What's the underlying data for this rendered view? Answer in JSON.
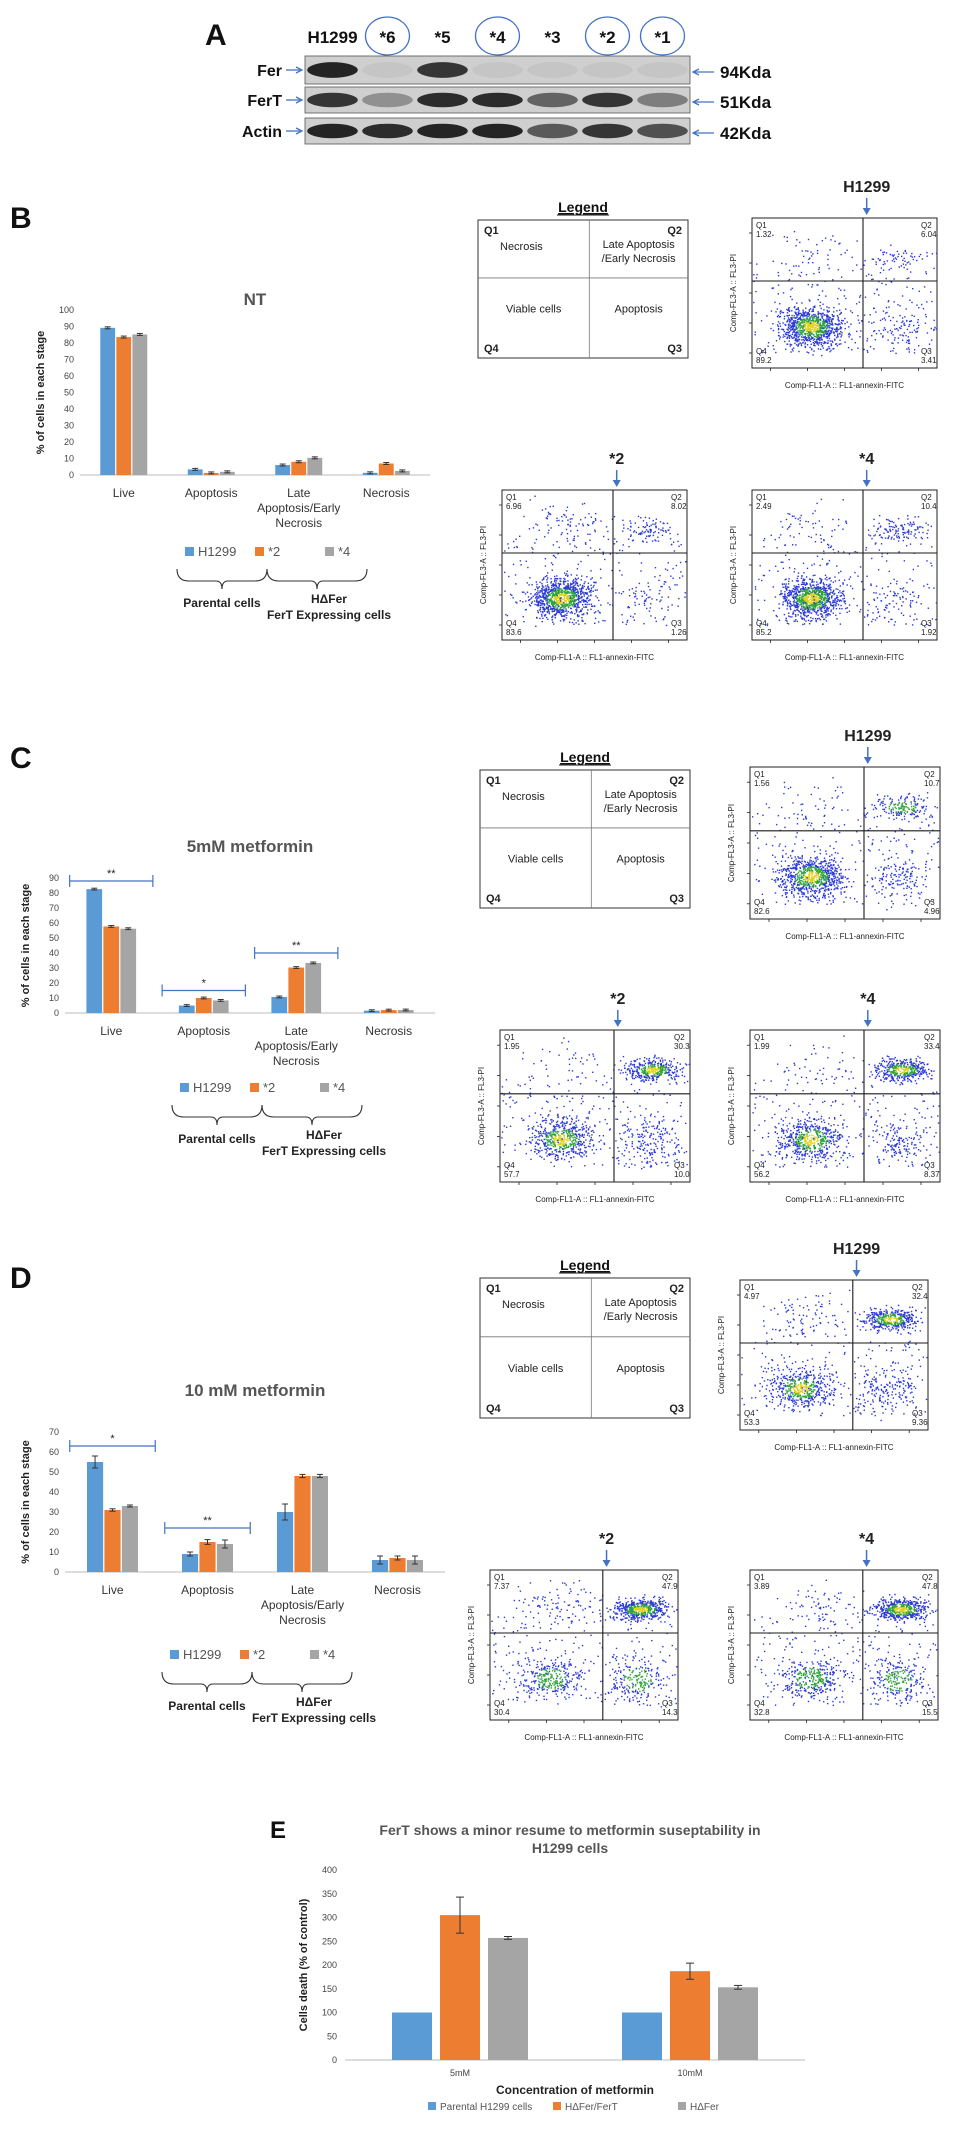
{
  "colors": {
    "h1299": "#5b9bd5",
    "s2": "#ed7d31",
    "s4": "#a5a5a5",
    "blot_bg": "#cfcfcf",
    "band": "#1a1a1a",
    "arrow": "#4472c4",
    "flow_grid": "#1a1a1a"
  },
  "panel_a": {
    "letter": "A",
    "lanes": [
      "H1299",
      "*6",
      "*5",
      "*4",
      "*3",
      "*2",
      "*1"
    ],
    "circled_lanes": [
      "*6",
      "*4",
      "*2",
      "*1"
    ],
    "rows": [
      {
        "label": "Fer",
        "size": "94Kda",
        "intensity": [
          0.95,
          0.05,
          0.85,
          0.05,
          0.05,
          0.05,
          0.05
        ]
      },
      {
        "label": "FerT",
        "size": "51Kda",
        "intensity": [
          0.85,
          0.35,
          0.9,
          0.9,
          0.6,
          0.85,
          0.45
        ]
      },
      {
        "label": "Actin",
        "size": "42Kda",
        "intensity": [
          0.95,
          0.9,
          0.95,
          0.95,
          0.65,
          0.85,
          0.7
        ]
      }
    ]
  },
  "bar_common": {
    "ylabel": "% of cells in each stage",
    "categories": [
      "Live",
      "Apoptosis",
      "Late Apoptosis/Early Necrosis",
      "Necrosis"
    ],
    "category_lines": [
      [
        "Live"
      ],
      [
        "Apoptosis"
      ],
      [
        "Late",
        "Apoptosis/Early",
        "Necrosis"
      ],
      [
        "Necrosis"
      ]
    ],
    "legend": [
      "H1299",
      "*2",
      "*4"
    ],
    "brace_left": "Parental cells",
    "brace_right_1": "HΔFer",
    "brace_right_2": "FerT Expressing cells"
  },
  "legend_box": {
    "title": "Legend",
    "q1": "Q1",
    "q2": "Q2",
    "q3": "Q3",
    "q4": "Q4",
    "necrosis": "Necrosis",
    "late_1": "Late Apoptosis",
    "late_2": "/Early Necrosis",
    "viable": "Viable cells",
    "apoptosis": "Apoptosis"
  },
  "flow_axes": {
    "x": "Comp-FL1-A :: FL1-annexin-FITC",
    "y": "Comp-FL3-A :: FL3-PI"
  },
  "panel_b": {
    "letter": "B",
    "chart_data": {
      "type": "bar",
      "title": "NT",
      "categories": [
        "Live",
        "Apoptosis",
        "Late Apoptosis/Early Necrosis",
        "Necrosis"
      ],
      "series": [
        {
          "name": "H1299",
          "values": [
            89.2,
            3.41,
            6.04,
            1.32
          ]
        },
        {
          "name": "*2",
          "values": [
            83.6,
            1.26,
            8.02,
            6.96
          ]
        },
        {
          "name": "*4",
          "values": [
            85.2,
            1.92,
            10.4,
            2.49
          ]
        }
      ],
      "ylim": [
        0,
        100
      ],
      "yticks": [
        0,
        10,
        20,
        30,
        40,
        50,
        60,
        70,
        80,
        90,
        100
      ],
      "ylabel": "% of cells in each stage",
      "sig": []
    },
    "flows": [
      {
        "title": "H1299",
        "q1": "1.32",
        "q2": "6.04",
        "q3": "3.41",
        "q4": "89.2",
        "seed": 11,
        "pop": [
          0.04,
          0.05,
          0.08,
          0.83
        ]
      },
      {
        "title": "*2",
        "q1": "6.96",
        "q2": "8.02",
        "q3": "1.26",
        "q4": "83.6",
        "seed": 23,
        "pop": [
          0.08,
          0.08,
          0.04,
          0.8
        ]
      },
      {
        "title": "*4",
        "q1": "2.49",
        "q2": "10.4",
        "q3": "1.92",
        "q4": "85.2",
        "seed": 37,
        "pop": [
          0.05,
          0.11,
          0.05,
          0.79
        ]
      }
    ]
  },
  "panel_c": {
    "letter": "C",
    "chart_data": {
      "type": "bar",
      "title": "5mM metformin",
      "categories": [
        "Live",
        "Apoptosis",
        "Late Apoptosis/Early Necrosis",
        "Necrosis"
      ],
      "series": [
        {
          "name": "H1299",
          "values": [
            82.6,
            4.96,
            10.7,
            1.56
          ]
        },
        {
          "name": "*2",
          "values": [
            57.7,
            10.0,
            30.3,
            1.95
          ]
        },
        {
          "name": "*4",
          "values": [
            56.2,
            8.37,
            33.4,
            1.99
          ]
        }
      ],
      "ylim": [
        0,
        90
      ],
      "yticks": [
        0,
        10,
        20,
        30,
        40,
        50,
        60,
        70,
        80,
        90
      ],
      "ylabel": "% of cells in each stage",
      "sig": [
        {
          "cat": 0,
          "label": "**",
          "y": 88
        },
        {
          "cat": 1,
          "label": "*",
          "y": 15
        },
        {
          "cat": 2,
          "label": "**",
          "y": 40
        }
      ]
    },
    "flows": [
      {
        "title": "H1299",
        "q1": "1.56",
        "q2": "10.7",
        "q3": "4.96",
        "q4": "82.6",
        "seed": 41,
        "pop": [
          0.04,
          0.16,
          0.12,
          0.68
        ]
      },
      {
        "title": "*2",
        "q1": "1.95",
        "q2": "30.3",
        "q3": "10.0",
        "q4": "57.7",
        "seed": 53,
        "pop": [
          0.04,
          0.34,
          0.15,
          0.47
        ]
      },
      {
        "title": "*4",
        "q1": "1.99",
        "q2": "33.4",
        "q3": "8.37",
        "q4": "56.2",
        "seed": 67,
        "pop": [
          0.04,
          0.36,
          0.12,
          0.48
        ]
      }
    ]
  },
  "panel_d": {
    "letter": "D",
    "chart_data": {
      "type": "bar",
      "title": "10 mM metformin",
      "categories": [
        "Live",
        "Apoptosis",
        "Late Apoptosis/Early Necrosis",
        "Necrosis"
      ],
      "series": [
        {
          "name": "H1299",
          "values": [
            55,
            9,
            30,
            6
          ],
          "errors": [
            3,
            1,
            4,
            2
          ]
        },
        {
          "name": "*2",
          "values": [
            31,
            15,
            48,
            7
          ],
          "errors": [
            0.6,
            1.2,
            0.8,
            1
          ]
        },
        {
          "name": "*4",
          "values": [
            33,
            14,
            48,
            6
          ],
          "errors": [
            0.5,
            2,
            0.8,
            2
          ]
        }
      ],
      "ylim": [
        0,
        70
      ],
      "yticks": [
        0,
        10,
        20,
        30,
        40,
        50,
        60,
        70
      ],
      "ylabel": "% of cells in each stage",
      "sig": [
        {
          "cat": 0,
          "label": "*",
          "y": 63
        },
        {
          "cat": 1,
          "label": "**",
          "y": 22
        }
      ]
    },
    "flows": [
      {
        "title": "H1299",
        "q1": "4.97",
        "q2": "32.4",
        "q3": "9.36",
        "q4": "53.3",
        "seed": 71,
        "pop": [
          0.07,
          0.36,
          0.14,
          0.43
        ]
      },
      {
        "title": "*2",
        "q1": "7.37",
        "q2": "47.9",
        "q3": "14.3",
        "q4": "30.4",
        "seed": 83,
        "pop": [
          0.09,
          0.46,
          0.18,
          0.27
        ]
      },
      {
        "title": "*4",
        "q1": "3.89",
        "q2": "47.8",
        "q3": "15.5",
        "q4": "32.8",
        "seed": 97,
        "pop": [
          0.06,
          0.46,
          0.19,
          0.29
        ]
      }
    ]
  },
  "panel_e": {
    "letter": "E",
    "chart_data": {
      "type": "bar",
      "title": "FerT shows a minor resume to metformin suseptability in H1299 cells",
      "title_lines": [
        "FerT shows a minor resume to metformin suseptability in",
        "H1299 cells"
      ],
      "categories": [
        "5mM",
        "10mM"
      ],
      "series": [
        {
          "name": "Parental H1299 cells",
          "values": [
            100,
            100
          ],
          "errors": [
            0,
            0
          ]
        },
        {
          "name": "HΔFer/FerT",
          "values": [
            305,
            187
          ],
          "errors": [
            38,
            17
          ]
        },
        {
          "name": "HΔFer",
          "values": [
            257,
            153
          ],
          "errors": [
            3,
            4
          ]
        }
      ],
      "ylim": [
        0,
        400
      ],
      "yticks": [
        0,
        50,
        100,
        150,
        200,
        250,
        300,
        350,
        400
      ],
      "xlabel": "Concentration of metformin",
      "ylabel": "Cells death (% of control)"
    }
  }
}
